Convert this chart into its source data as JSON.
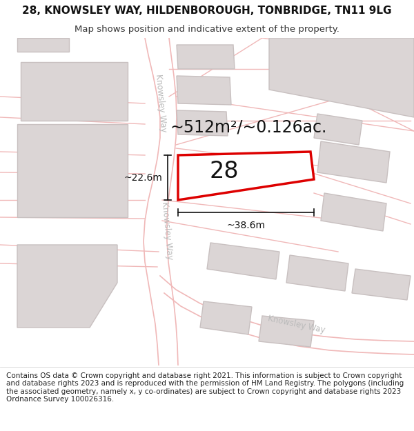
{
  "title_line1": "28, KNOWSLEY WAY, HILDENBOROUGH, TONBRIDGE, TN11 9LG",
  "title_line2": "Map shows position and indicative extent of the property.",
  "footer_text": "Contains OS data © Crown copyright and database right 2021. This information is subject to Crown copyright and database rights 2023 and is reproduced with the permission of HM Land Registry. The polygons (including the associated geometry, namely x, y co-ordinates) are subject to Crown copyright and database rights 2023 Ordnance Survey 100026316.",
  "bg_color": "#ffffff",
  "map_bg": "#f7f4f4",
  "road_color": "#f0b8b8",
  "building_color": "#dbd5d5",
  "building_edge": "#c8c0c0",
  "highlight_color": "#dd0000",
  "highlight_fill": "#ffffff",
  "road_label_color": "#bbbbbb",
  "dim_color": "#111111",
  "area_text": "~512m²/~0.126ac.",
  "number_text": "28",
  "dim_width": "~38.6m",
  "dim_height": "~22.6m",
  "title_fontsize": 11,
  "subtitle_fontsize": 9.5,
  "footer_fontsize": 7.5,
  "area_fontsize": 17,
  "number_fontsize": 24,
  "dim_fontsize": 10,
  "road_label_fontsize": 8.5
}
